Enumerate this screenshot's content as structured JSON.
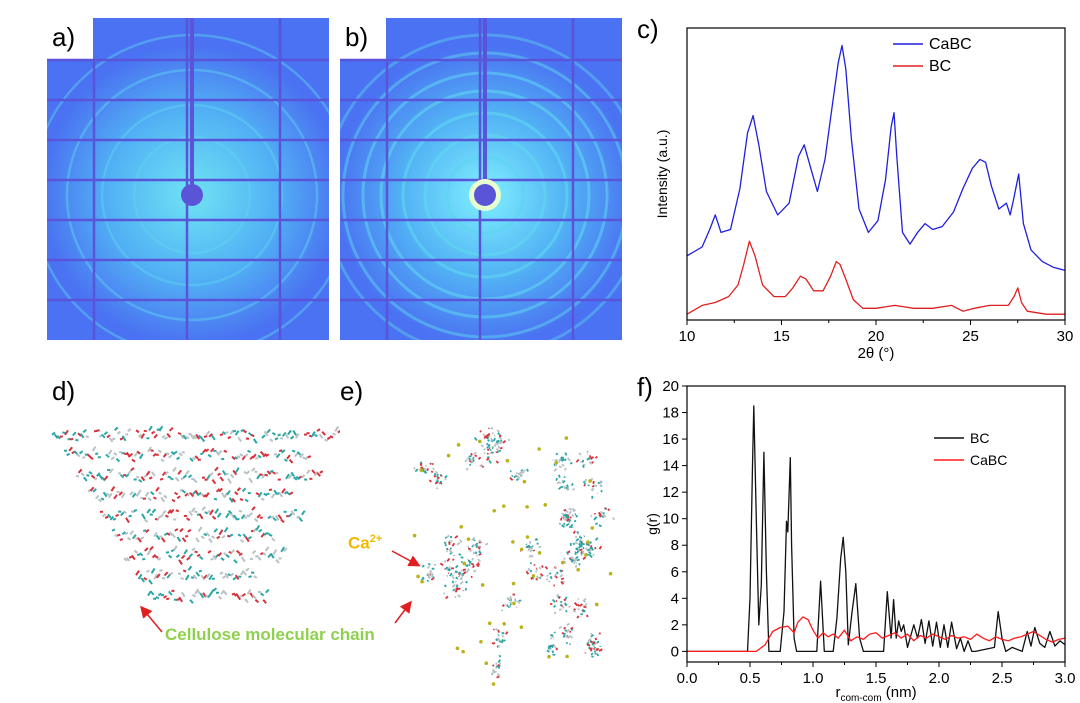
{
  "panels": {
    "a": {
      "label": "a)"
    },
    "b": {
      "label": "b)"
    },
    "c": {
      "label": "c)"
    },
    "d": {
      "label": "d)"
    },
    "e": {
      "label": "e)"
    },
    "f": {
      "label": "f)"
    }
  },
  "annotations": {
    "ca_ion": {
      "base": "Ca",
      "sup": "2+",
      "color": "#f2b800"
    },
    "chain": {
      "text": "Cellulose molecular chain",
      "color": "#8fd14f"
    }
  },
  "colors": {
    "detector_bg": "#4a72f2",
    "detector_ring": "#5fd4f0",
    "grid_line": "#5a55d8",
    "cabc": "#1f1fe0",
    "bc_c": "#e02020",
    "bc_f": "#111111",
    "cabc_f": "#ff1a1a"
  },
  "chart_data": [
    {
      "id": "c",
      "type": "line",
      "xlabel": "2θ (°)",
      "ylabel": "Intensity (a.u.)",
      "xlim": [
        10,
        30
      ],
      "ylim": [
        0,
        1
      ],
      "xticks": [
        "10",
        "15",
        "20",
        "25",
        "30"
      ],
      "yticks_visible": false,
      "legend_position": "top-right",
      "series": [
        {
          "name": "CaBC",
          "color": "#1f1fe0",
          "x": [
            10,
            10.8,
            11.2,
            11.5,
            11.8,
            12.3,
            12.8,
            13.2,
            13.5,
            13.8,
            14.2,
            14.8,
            15.4,
            15.9,
            16.2,
            16.5,
            16.9,
            17.3,
            17.7,
            18.0,
            18.2,
            18.4,
            18.7,
            19.1,
            19.6,
            20.1,
            20.5,
            20.8,
            20.95,
            21.1,
            21.4,
            21.8,
            22.2,
            22.6,
            23.0,
            23.5,
            24.1,
            24.6,
            25.1,
            25.5,
            25.8,
            26.1,
            26.5,
            26.9,
            27.1,
            27.3,
            27.55,
            27.8,
            28.2,
            28.8,
            29.4,
            30
          ],
          "y": [
            0.22,
            0.25,
            0.31,
            0.36,
            0.3,
            0.31,
            0.45,
            0.64,
            0.7,
            0.6,
            0.44,
            0.36,
            0.4,
            0.56,
            0.6,
            0.53,
            0.44,
            0.55,
            0.74,
            0.88,
            0.94,
            0.86,
            0.62,
            0.38,
            0.3,
            0.34,
            0.48,
            0.66,
            0.71,
            0.56,
            0.3,
            0.26,
            0.3,
            0.33,
            0.31,
            0.32,
            0.37,
            0.45,
            0.52,
            0.55,
            0.54,
            0.46,
            0.38,
            0.4,
            0.36,
            0.42,
            0.5,
            0.33,
            0.24,
            0.2,
            0.18,
            0.17
          ]
        },
        {
          "name": "BC",
          "color": "#e02020",
          "x": [
            10,
            10.8,
            11.5,
            12.2,
            12.7,
            13.0,
            13.3,
            13.6,
            14.0,
            14.6,
            15.2,
            15.6,
            16.0,
            16.3,
            16.7,
            17.2,
            17.6,
            17.9,
            18.1,
            18.4,
            18.8,
            19.3,
            20.0,
            21.0,
            22.0,
            23.0,
            24.0,
            24.6,
            25.2,
            26.0,
            27.0,
            27.3,
            27.5,
            27.7,
            28.0,
            29.0,
            30
          ],
          "y": [
            0.02,
            0.05,
            0.06,
            0.08,
            0.12,
            0.19,
            0.27,
            0.22,
            0.12,
            0.08,
            0.08,
            0.11,
            0.15,
            0.14,
            0.1,
            0.1,
            0.15,
            0.2,
            0.19,
            0.14,
            0.07,
            0.04,
            0.04,
            0.05,
            0.04,
            0.04,
            0.05,
            0.03,
            0.04,
            0.05,
            0.05,
            0.08,
            0.11,
            0.06,
            0.03,
            0.02,
            0.02
          ]
        }
      ]
    },
    {
      "id": "f",
      "type": "line",
      "xlabel_main": "r",
      "xlabel_sub": "com-com",
      "xlabel_unit": " (nm)",
      "ylabel": "g(r)",
      "xlim": [
        0.0,
        3.0
      ],
      "ylim": [
        -0.8,
        20
      ],
      "xticks": [
        "0.0",
        "0.5",
        "1.0",
        "1.5",
        "2.0",
        "2.5",
        "3.0"
      ],
      "yticks": [
        "0",
        "2",
        "4",
        "6",
        "8",
        "10",
        "12",
        "14",
        "16",
        "18",
        "20"
      ],
      "legend_position": "top-right",
      "series": [
        {
          "name": "BC",
          "color": "#111111",
          "x": [
            0.0,
            0.48,
            0.5,
            0.52,
            0.53,
            0.55,
            0.57,
            0.59,
            0.61,
            0.63,
            0.65,
            0.74,
            0.77,
            0.79,
            0.8,
            0.82,
            0.83,
            0.85,
            0.87,
            1.03,
            1.06,
            1.09,
            1.16,
            1.19,
            1.22,
            1.24,
            1.26,
            1.28,
            1.31,
            1.34,
            1.37,
            1.4,
            1.56,
            1.59,
            1.62,
            1.64,
            1.66,
            1.68,
            1.7,
            1.72,
            1.75,
            1.8,
            1.83,
            1.86,
            1.89,
            1.92,
            1.95,
            1.98,
            2.01,
            2.04,
            2.07,
            2.1,
            2.14,
            2.17,
            2.2,
            2.23,
            2.26,
            2.29,
            2.44,
            2.47,
            2.5,
            2.53,
            2.58,
            2.66,
            2.7,
            2.73,
            2.76,
            2.8,
            2.84,
            2.88,
            2.92,
            2.96,
            3.0
          ],
          "y": [
            0,
            0,
            4,
            14,
            18.5,
            10,
            2,
            5,
            15,
            6,
            0,
            0,
            3,
            9.8,
            9,
            14.6,
            8,
            1,
            0,
            0,
            5.3,
            0,
            0,
            2.5,
            7,
            8.6,
            6,
            0.5,
            3,
            5.1,
            1,
            0,
            0,
            4.5,
            1,
            3.9,
            1,
            2.3,
            1.5,
            2.0,
            0.3,
            2.0,
            1.0,
            2.4,
            0.6,
            2.3,
            0.4,
            2.2,
            0.3,
            2.0,
            0.3,
            2.2,
            0.2,
            1.0,
            0,
            0.8,
            0,
            0,
            0.3,
            3.0,
            1.0,
            0,
            0.3,
            0,
            1.5,
            0.4,
            1.8,
            0.6,
            0.3,
            1.5,
            0.4,
            0.8,
            0.5
          ]
        },
        {
          "name": "CaBC",
          "color": "#ff1a1a",
          "x": [
            0.0,
            0.55,
            0.62,
            0.68,
            0.74,
            0.8,
            0.85,
            0.88,
            0.92,
            0.96,
            1.0,
            1.04,
            1.08,
            1.12,
            1.16,
            1.2,
            1.25,
            1.3,
            1.35,
            1.4,
            1.45,
            1.5,
            1.55,
            1.6,
            1.65,
            1.7,
            1.75,
            1.8,
            1.85,
            1.9,
            1.95,
            2.0,
            2.05,
            2.1,
            2.15,
            2.2,
            2.25,
            2.3,
            2.35,
            2.4,
            2.45,
            2.5,
            2.55,
            2.6,
            2.65,
            2.7,
            2.75,
            2.8,
            2.85,
            2.9,
            2.95,
            3.0
          ],
          "y": [
            0,
            0,
            0.5,
            1.5,
            1.8,
            1.9,
            1.4,
            2.2,
            2.6,
            2.4,
            1.6,
            1.0,
            1.4,
            1.1,
            1.3,
            1.0,
            1.6,
            0.8,
            1.1,
            0.9,
            1.3,
            1.4,
            1.0,
            1.2,
            1.4,
            1.0,
            1.3,
            0.8,
            1.2,
            1.0,
            1.3,
            1.1,
            0.9,
            1.2,
            1.0,
            1.1,
            0.9,
            1.3,
            1.0,
            0.8,
            1.1,
            0.9,
            0.8,
            1.0,
            1.1,
            1.3,
            1.5,
            1.2,
            0.9,
            0.7,
            0.9,
            1.0
          ]
        }
      ]
    }
  ]
}
